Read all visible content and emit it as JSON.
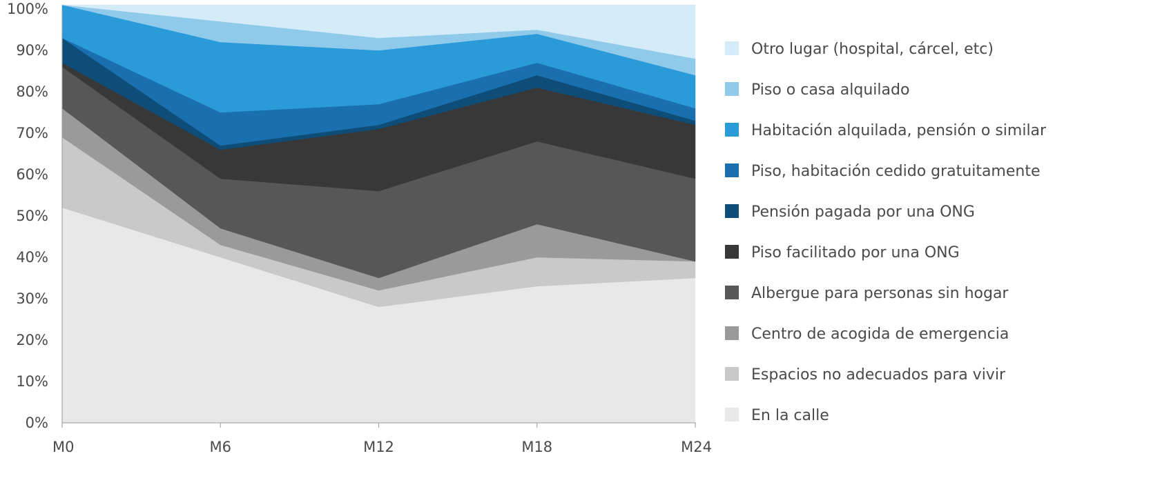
{
  "chart_data": {
    "type": "area",
    "stacked": true,
    "normalized": true,
    "categories": [
      "M0",
      "M6",
      "M12",
      "M18",
      "M24"
    ],
    "y_ticks": [
      "0%",
      "10%",
      "20%",
      "30%",
      "40%",
      "50%",
      "60%",
      "70%",
      "80%",
      "90%",
      "100%"
    ],
    "ylim": [
      0,
      100
    ],
    "grid": false,
    "legend_position": "right",
    "series": [
      {
        "name": "En la calle",
        "color": "#e8e8e8",
        "values": [
          52,
          40,
          28,
          33,
          35
        ]
      },
      {
        "name": "Espacios no adecuados para vivir",
        "color": "#c9c9c9",
        "values": [
          17,
          3,
          4,
          7,
          4
        ]
      },
      {
        "name": "Centro de acogida de emergencia",
        "color": "#9a9a9a",
        "values": [
          7,
          4,
          3,
          8,
          0
        ]
      },
      {
        "name": "Albergue para personas sin hogar",
        "color": "#575757",
        "values": [
          10,
          12,
          21,
          20,
          20
        ]
      },
      {
        "name": "Piso facilitado por una ONG",
        "color": "#383838",
        "values": [
          1,
          7,
          15,
          13,
          13
        ]
      },
      {
        "name": "Pensión pagada por una ONG",
        "color": "#0e4d78",
        "values": [
          6,
          1,
          1,
          3,
          1
        ]
      },
      {
        "name": "Piso, habitación cedido gratuitamente",
        "color": "#1a6fae",
        "values": [
          0,
          8,
          5,
          3,
          3
        ]
      },
      {
        "name": "Habitación alquilada, pensión o similar",
        "color": "#2a9ad9",
        "values": [
          8,
          17,
          13,
          7,
          8
        ]
      },
      {
        "name": "Piso o casa alquilado",
        "color": "#8fcaeb",
        "values": [
          0,
          5,
          3,
          1,
          4
        ]
      },
      {
        "name": "Otro lugar (hospital, cárcel, etc)",
        "color": "#d4ebf8",
        "values": [
          0,
          4,
          8,
          6,
          13
        ]
      }
    ]
  }
}
